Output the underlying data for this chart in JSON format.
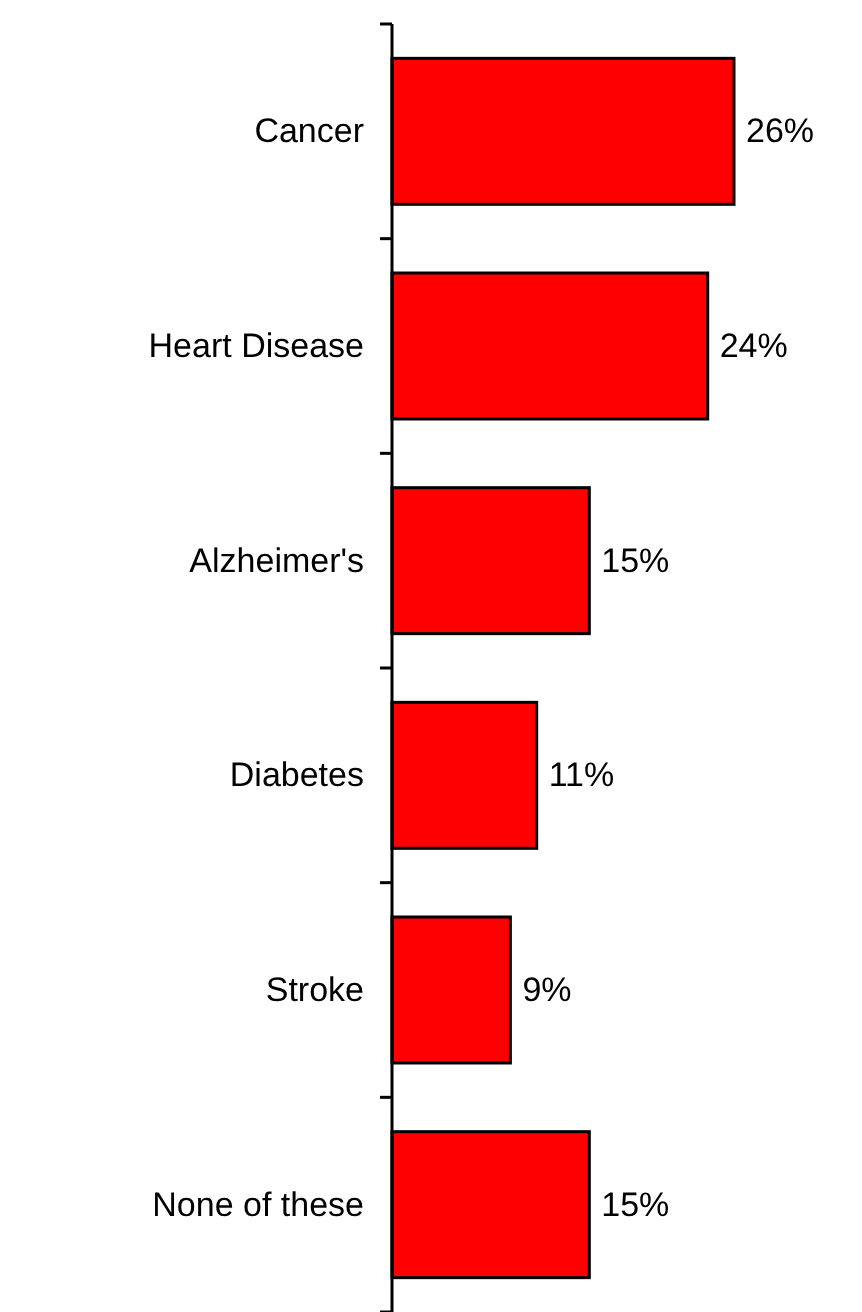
{
  "chart_data": {
    "type": "bar",
    "orientation": "horizontal",
    "categories": [
      "Cancer",
      "Heart Disease",
      "Alzheimer's",
      "Diabetes",
      "Stroke",
      "None of these"
    ],
    "values": [
      26,
      24,
      15,
      11,
      9,
      15
    ],
    "value_labels": [
      "26%",
      "24%",
      "15%",
      "11%",
      "9%",
      "15%"
    ],
    "color": "#ff0000"
  }
}
